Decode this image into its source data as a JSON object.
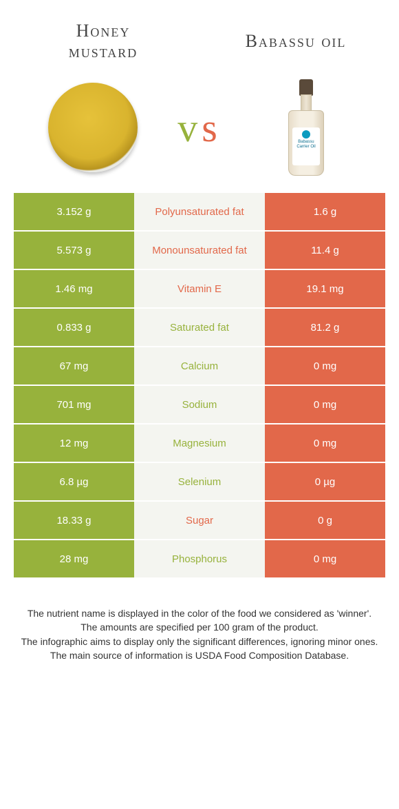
{
  "colors": {
    "left": "#97b23c",
    "right": "#e2684a",
    "mid_bg": "#f4f5f0"
  },
  "foods": {
    "left": {
      "name": "Honey\nmustard",
      "color": "#97b23c"
    },
    "right": {
      "name": "Babassu oil",
      "color": "#e2684a"
    }
  },
  "vs": "vs",
  "rows": [
    {
      "label": "Polyunsaturated fat",
      "left": "3.152 g",
      "right": "1.6 g",
      "winner": "right"
    },
    {
      "label": "Monounsaturated fat",
      "left": "5.573 g",
      "right": "11.4 g",
      "winner": "right"
    },
    {
      "label": "Vitamin E",
      "left": "1.46 mg",
      "right": "19.1 mg",
      "winner": "right"
    },
    {
      "label": "Saturated fat",
      "left": "0.833 g",
      "right": "81.2 g",
      "winner": "left"
    },
    {
      "label": "Calcium",
      "left": "67 mg",
      "right": "0 mg",
      "winner": "left"
    },
    {
      "label": "Sodium",
      "left": "701 mg",
      "right": "0 mg",
      "winner": "left"
    },
    {
      "label": "Magnesium",
      "left": "12 mg",
      "right": "0 mg",
      "winner": "left"
    },
    {
      "label": "Selenium",
      "left": "6.8 µg",
      "right": "0 µg",
      "winner": "left"
    },
    {
      "label": "Sugar",
      "left": "18.33 g",
      "right": "0 g",
      "winner": "right"
    },
    {
      "label": "Phosphorus",
      "left": "28 mg",
      "right": "0 mg",
      "winner": "left"
    }
  ],
  "footnote": [
    "The nutrient name is displayed in the color of the food we considered as 'winner'.",
    "The amounts are specified per 100 gram of the product.",
    "The infographic aims to display only the significant differences, ignoring minor ones.",
    "The main source of information is USDA Food Composition Database."
  ]
}
